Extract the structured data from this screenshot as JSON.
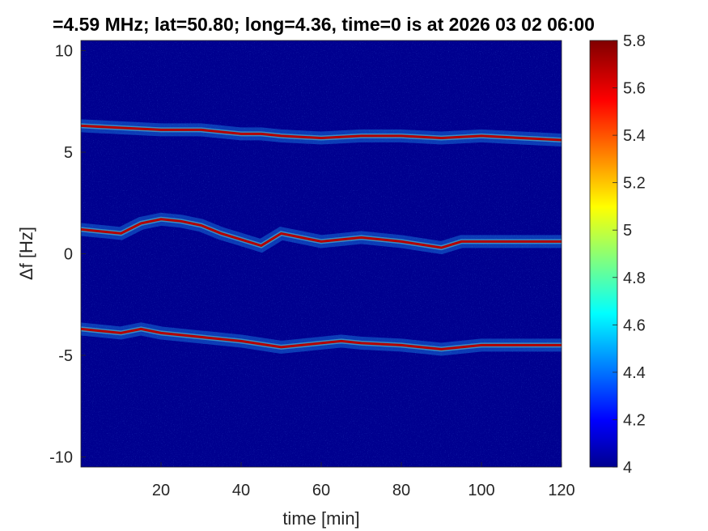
{
  "chart_data": {
    "type": "heatmap",
    "title": "=4.59 MHz;  lat=50.80; long=4.36, time=0 is at 2026 03 02 06:00",
    "xlabel": "time [min]",
    "ylabel": "Δf [Hz]",
    "xlim": [
      0,
      120
    ],
    "ylim": [
      -10.5,
      10.5
    ],
    "x_ticks": [
      20,
      40,
      60,
      80,
      100,
      120
    ],
    "y_ticks": [
      -10,
      -5,
      0,
      5,
      10
    ],
    "x_tick_labels": [
      "20",
      "40",
      "60",
      "80",
      "100",
      "120"
    ],
    "y_tick_labels": [
      "-10",
      "-5",
      "0",
      "5",
      "10"
    ],
    "colorbar": {
      "range": [
        4,
        5.8
      ],
      "ticks": [
        4,
        4.2,
        4.4,
        4.6,
        4.8,
        5,
        5.2,
        5.4,
        5.6,
        5.8
      ],
      "tick_labels": [
        "4",
        "4.2",
        "4.4",
        "4.6",
        "4.8",
        "5",
        "5.2",
        "5.4",
        "5.6",
        "5.8"
      ],
      "colormap": "jet"
    },
    "background_color": "#00008f",
    "series": [
      {
        "x": [
          0,
          10,
          20,
          30,
          40,
          45,
          50,
          60,
          70,
          80,
          90,
          100,
          110,
          120
        ],
        "y": [
          6.3,
          6.2,
          6.1,
          6.1,
          5.9,
          5.9,
          5.8,
          5.7,
          5.8,
          5.8,
          5.7,
          5.8,
          5.7,
          5.6
        ]
      },
      {
        "x": [
          0,
          10,
          15,
          20,
          25,
          30,
          35,
          40,
          45,
          50,
          55,
          60,
          70,
          80,
          90,
          95,
          100,
          110,
          120
        ],
        "y": [
          1.2,
          1.0,
          1.5,
          1.7,
          1.6,
          1.4,
          1.0,
          0.7,
          0.4,
          1.0,
          0.8,
          0.6,
          0.8,
          0.6,
          0.3,
          0.6,
          0.6,
          0.6,
          0.6
        ]
      },
      {
        "x": [
          0,
          10,
          15,
          20,
          30,
          40,
          50,
          55,
          60,
          65,
          70,
          80,
          90,
          100,
          110,
          120
        ],
        "y": [
          -3.7,
          -3.9,
          -3.7,
          -3.9,
          -4.1,
          -4.3,
          -4.6,
          -4.5,
          -4.4,
          -4.3,
          -4.4,
          -4.5,
          -4.7,
          -4.5,
          -4.5,
          -4.5
        ]
      }
    ]
  }
}
